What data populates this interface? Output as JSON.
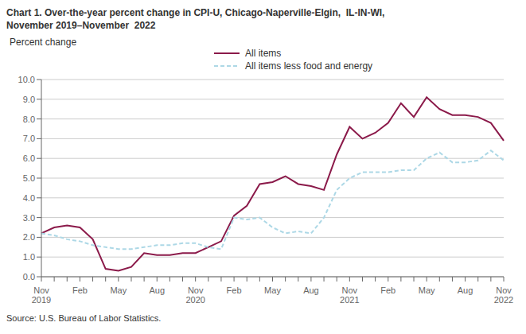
{
  "chart_data": {
    "type": "line",
    "title": "Chart 1. Over-the-year percent change in CPI-U, Chicago-Naperville-Elgin,  IL-IN-WI,\nNovember 2019–November  2022",
    "y_label": "Percent change",
    "source": "Source: U.S. Bureau of Labor Statistics.",
    "categories": [
      "Nov\n2019",
      null,
      null,
      "Feb",
      null,
      null,
      "May",
      null,
      null,
      "Aug",
      null,
      null,
      "Nov\n2020",
      null,
      null,
      "Feb",
      null,
      null,
      "May",
      null,
      null,
      "Aug",
      null,
      null,
      "Nov\n2021",
      null,
      null,
      "Feb",
      null,
      null,
      "May",
      null,
      null,
      "Aug",
      null,
      null,
      "Nov\n2022"
    ],
    "series": [
      {
        "name": "All items",
        "color": "#8B1A4A",
        "line_style": "solid",
        "values": [
          2.2,
          2.5,
          2.6,
          2.5,
          1.9,
          0.4,
          0.3,
          0.5,
          1.2,
          1.1,
          1.1,
          1.2,
          1.2,
          1.5,
          1.8,
          3.1,
          3.6,
          4.7,
          4.8,
          5.1,
          4.7,
          4.6,
          4.4,
          6.2,
          7.6,
          7.0,
          7.3,
          7.8,
          8.8,
          8.1,
          9.1,
          8.5,
          8.2,
          8.2,
          8.1,
          7.8,
          6.9
        ]
      },
      {
        "name": "All items less food and energy",
        "color": "#ADD8E6",
        "line_style": "dashed",
        "values": [
          2.2,
          2.1,
          1.9,
          1.8,
          1.6,
          1.5,
          1.4,
          1.4,
          1.5,
          1.6,
          1.6,
          1.7,
          1.7,
          1.5,
          1.4,
          3.0,
          2.9,
          3.0,
          2.5,
          2.2,
          2.3,
          2.2,
          3.0,
          4.4,
          5.0,
          5.3,
          5.3,
          5.3,
          5.4,
          5.4,
          6.0,
          6.3,
          5.8,
          5.8,
          5.9,
          6.4,
          5.9
        ]
      }
    ],
    "ylim": [
      0.0,
      10.0
    ],
    "yticks": [
      {
        "value": 0,
        "label": "0.0"
      },
      {
        "value": 1,
        "label": "1.0"
      },
      {
        "value": 2,
        "label": "2.0"
      },
      {
        "value": 3,
        "label": "3.0"
      },
      {
        "value": 4,
        "label": "4.0"
      },
      {
        "value": 5,
        "label": "5.0"
      },
      {
        "value": 6,
        "label": "6.0"
      },
      {
        "value": 7,
        "label": "7.0"
      },
      {
        "value": 8,
        "label": "8.0"
      },
      {
        "value": 9,
        "label": "9.0"
      },
      {
        "value": 10,
        "label": "10.0"
      }
    ],
    "grid": true,
    "legend": "top"
  }
}
